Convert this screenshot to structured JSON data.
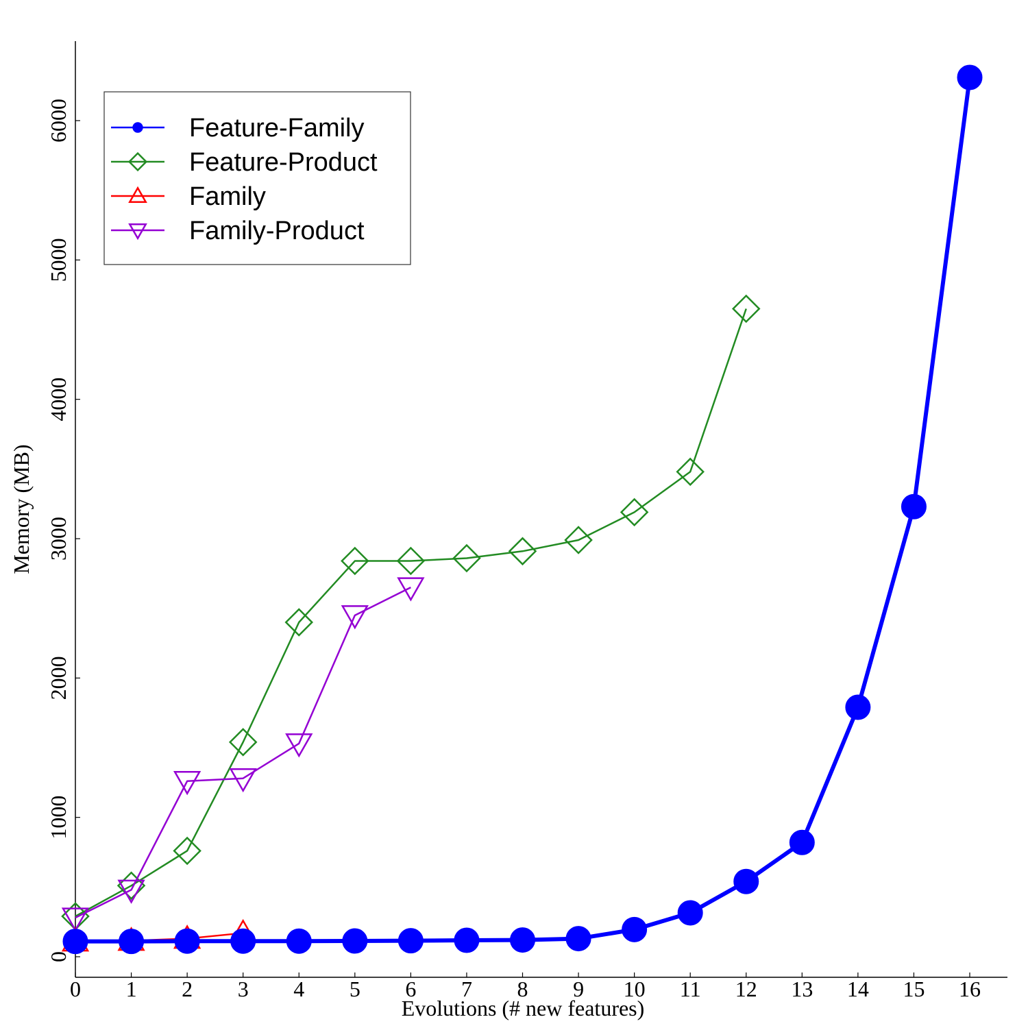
{
  "chart_data": {
    "type": "line",
    "xlabel": "Evolutions (# new features)",
    "ylabel": "Memory (MB)",
    "xlim": [
      0,
      16
    ],
    "ylim": [
      -150,
      6550
    ],
    "xticks": [
      0,
      1,
      2,
      3,
      4,
      5,
      6,
      7,
      8,
      9,
      10,
      11,
      12,
      13,
      14,
      15,
      16
    ],
    "yticks": [
      0,
      1000,
      2000,
      3000,
      4000,
      5000,
      6000
    ],
    "grid": false,
    "legend_position": "top-left",
    "series": [
      {
        "name": "Feature-Family",
        "color": "#0000ff",
        "marker": "circle",
        "x": [
          0,
          1,
          2,
          3,
          4,
          5,
          6,
          7,
          8,
          9,
          10,
          11,
          12,
          13,
          14,
          15,
          16
        ],
        "y": [
          110,
          110,
          112,
          112,
          112,
          113,
          115,
          118,
          120,
          130,
          195,
          315,
          540,
          820,
          1790,
          3230,
          6310
        ]
      },
      {
        "name": "Feature-Product",
        "color": "#228b22",
        "marker": "diamond",
        "x": [
          0,
          1,
          2,
          3,
          4,
          5,
          6,
          7,
          8,
          9,
          10,
          11,
          12
        ],
        "y": [
          290,
          510,
          760,
          1540,
          2400,
          2840,
          2840,
          2860,
          2910,
          2990,
          3190,
          3480,
          4650
        ]
      },
      {
        "name": "Family",
        "color": "#ff0000",
        "marker": "triangle-up",
        "x": [
          0,
          1,
          2,
          3
        ],
        "y": [
          110,
          115,
          130,
          170
        ]
      },
      {
        "name": "Family-Product",
        "color": "#9400d3",
        "marker": "triangle-down",
        "x": [
          0,
          1,
          2,
          3,
          4,
          5,
          6
        ],
        "y": [
          280,
          480,
          1260,
          1280,
          1530,
          2450,
          2650
        ]
      }
    ]
  }
}
